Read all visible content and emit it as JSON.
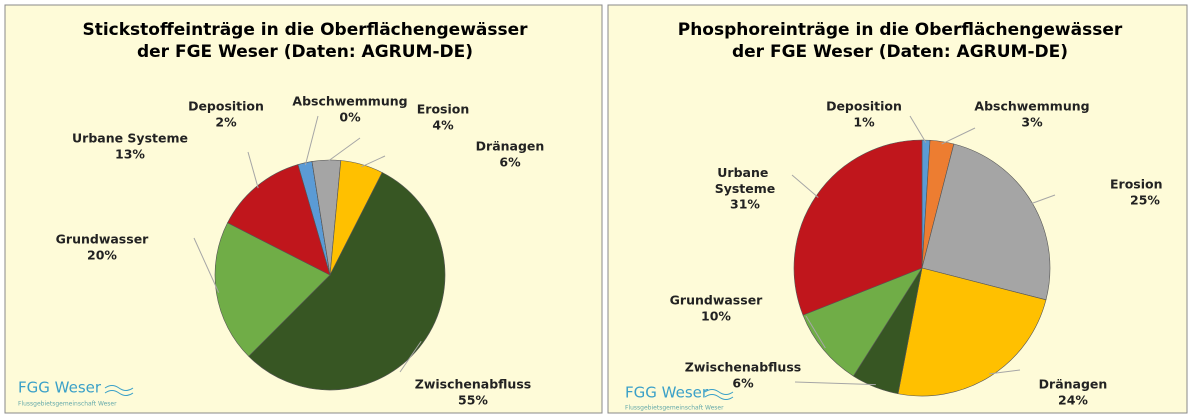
{
  "chart_data": [
    {
      "type": "pie",
      "title": [
        "Stickstoffeinträge in die Oberflächengewässer",
        "der FGE Weser (Daten: AGRUM-DE)"
      ],
      "categories": [
        "Deposition",
        "Abschwemmung",
        "Erosion",
        "Dränagen",
        "Zwischenabfluss",
        "Grundwasser",
        "Urbane Systeme"
      ],
      "values": [
        2,
        0,
        4,
        6,
        55,
        20,
        13
      ],
      "value_labels": [
        "2%",
        "0%",
        "4%",
        "6%",
        "55%",
        "20%",
        "13%"
      ],
      "colors": [
        "#5b9bd5",
        "#ed7d31",
        "#a5a5a5",
        "#ffc000",
        "#375623",
        "#70ad47",
        "#c0161c"
      ]
    },
    {
      "type": "pie",
      "title": [
        "Phosphoreinträge in die Oberflächengewässer",
        "der FGE Weser (Daten: AGRUM-DE)"
      ],
      "categories": [
        "Deposition",
        "Abschwemmung",
        "Erosion",
        "Dränagen",
        "Zwischenabfluss",
        "Grundwasser",
        "Urbane Systeme"
      ],
      "values": [
        1,
        3,
        25,
        24,
        6,
        10,
        31
      ],
      "value_labels": [
        "1%",
        "3%",
        "25%",
        "24%",
        "6%",
        "10%",
        "31%"
      ],
      "colors": [
        "#5b9bd5",
        "#ed7d31",
        "#a5a5a5",
        "#ffc000",
        "#375623",
        "#70ad47",
        "#c0161c"
      ]
    }
  ],
  "logo": {
    "name": "FGG Weser",
    "subtitle": "Flussgebietsgemeinschaft Weser"
  }
}
